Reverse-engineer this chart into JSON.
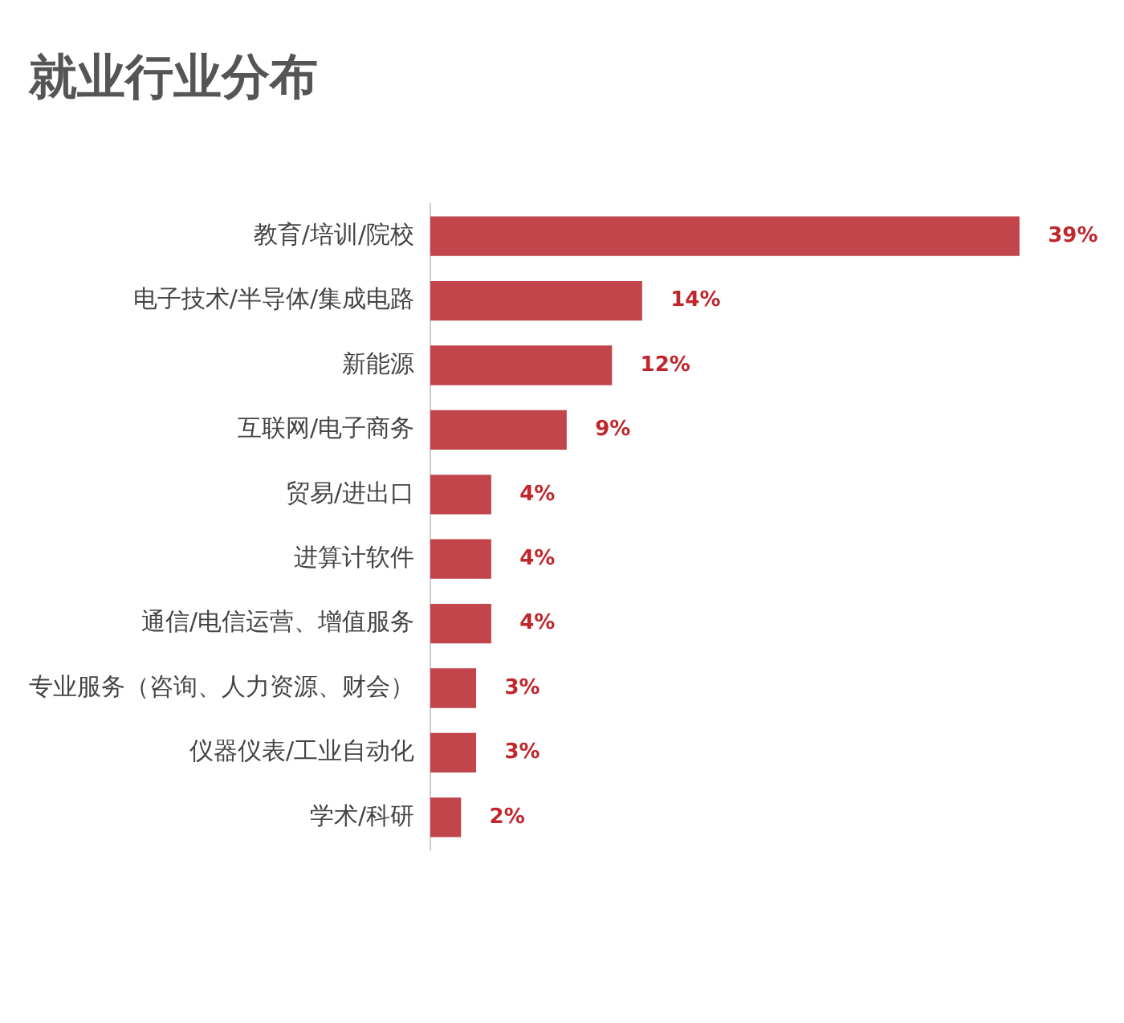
{
  "chart_data": {
    "type": "bar",
    "title": "就业行业分布",
    "orientation": "horizontal",
    "categories": [
      "教育/培训/院校",
      "电子技术/半导体/集成电路",
      "新能源",
      "互联网/电子商务",
      "贸易/进出口",
      "进算计软件",
      "通信/电信运营、增值服务",
      "专业服务（咨询、人力资源、财会）",
      "仪器仪表/工业自动化",
      "学术/科研"
    ],
    "series": [
      {
        "color": "#c1454a",
        "values": [
          39,
          14,
          12,
          9,
          4,
          4,
          4,
          3,
          3,
          2
        ],
        "value_labels": [
          "39%",
          "14%",
          "12%",
          "9%",
          "4%",
          "4%",
          "4%",
          "3%",
          "3%",
          "2%"
        ]
      }
    ],
    "legend": false
  }
}
